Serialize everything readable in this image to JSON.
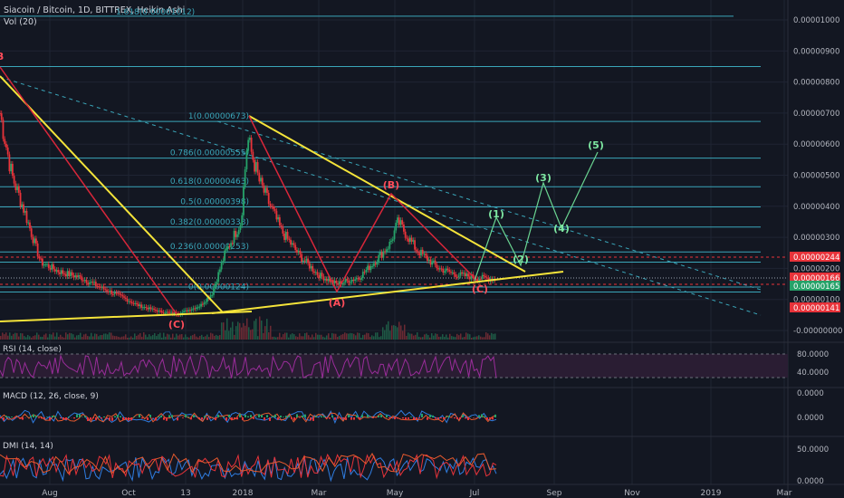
{
  "header": {
    "title": "Siacoin / Bitcoin, 1D, BITTREX, Heikin Ashi",
    "vol": "Vol (20)",
    "top_fib": "1.618(0.00001012)"
  },
  "price_axis": {
    "ticks": [
      "0.00001000",
      "0.00000900",
      "0.00000800",
      "0.00000700",
      "0.00000600",
      "0.00000500",
      "0.00000400",
      "0.00000300",
      "0.00000200",
      "0.00000100",
      "-0.00000000"
    ],
    "badges": [
      {
        "text": "0.00000244",
        "color": "#e8333a"
      },
      {
        "text": "0.00000166",
        "color": "#e8333a"
      },
      {
        "text": "0.00000165",
        "color": "#26a269"
      },
      {
        "text": "0.00000141",
        "color": "#e8333a"
      }
    ]
  },
  "fib_levels": [
    {
      "label": "1(0.00000673)",
      "value": 6.73e-06
    },
    {
      "label": "0.786(0.00000555)",
      "value": 5.55e-06
    },
    {
      "label": "0.618(0.00000463)",
      "value": 4.63e-06
    },
    {
      "label": "0.5(0.00000398)",
      "value": 3.98e-06
    },
    {
      "label": "0.382(0.00000333)",
      "value": 3.33e-06
    },
    {
      "label": "0.236(0.00000253)",
      "value": 2.53e-06
    },
    {
      "label": "0(0.00000124)",
      "value": 1.24e-06
    }
  ],
  "wave_labels": [
    {
      "text": "B",
      "color": "#ff4d5a"
    },
    {
      "text": "(C)",
      "color": "#ff4d5a"
    },
    {
      "text": "(A)",
      "color": "#ff4d5a"
    },
    {
      "text": "(B)",
      "color": "#ff4d5a"
    },
    {
      "text": "(C)",
      "color": "#ff4d5a"
    },
    {
      "text": "(1)",
      "color": "#7ee8a2"
    },
    {
      "text": "(2)",
      "color": "#7ee8a2"
    },
    {
      "text": "(3)",
      "color": "#7ee8a2"
    },
    {
      "text": "(4)",
      "color": "#7ee8a2"
    },
    {
      "text": "(5)",
      "color": "#7ee8a2"
    }
  ],
  "rsi": {
    "title": "RSI (14, close)",
    "ticks": [
      "80.0000",
      "40.0000"
    ]
  },
  "macd": {
    "title": "MACD (12, 26, close, 9)",
    "ticks": [
      "0.0000",
      "0.0000"
    ]
  },
  "dmi": {
    "title": "DMI (14, 14)",
    "ticks": [
      "50.0000",
      "0.0000"
    ]
  },
  "time_axis": [
    "Aug",
    "Oct",
    "13",
    "2018",
    "Mar",
    "May",
    "Jul",
    "Sep",
    "Nov",
    "2019",
    "Mar"
  ],
  "chart_data": {
    "type": "line",
    "title": "Siacoin / Bitcoin, 1D, BITTREX, Heikin Ashi",
    "ylim": [
      0,
      1.05e-05
    ],
    "series": [
      {
        "name": "Siacoin / Bitcoin",
        "x": [
          "2017-07-01",
          "2017-07-10",
          "2017-07-20",
          "2017-08-01",
          "2017-08-15",
          "2017-09-01",
          "2017-09-15",
          "2017-10-01",
          "2017-10-15",
          "2017-11-01",
          "2017-11-15",
          "2017-12-01",
          "2017-12-10",
          "2017-12-20",
          "2018-01-01",
          "2018-01-06",
          "2018-01-15",
          "2018-02-01",
          "2018-02-15",
          "2018-03-01",
          "2018-03-15",
          "2018-04-01",
          "2018-04-15",
          "2018-04-25",
          "2018-05-01",
          "2018-05-15",
          "2018-06-01",
          "2018-06-15",
          "2018-07-01",
          "2018-07-15"
        ],
        "values": [
          7e-06,
          5e-06,
          3.8e-06,
          2.2e-06,
          1.9e-06,
          1.7e-06,
          1.4e-06,
          1.1e-06,
          8e-07,
          6e-07,
          5.5e-07,
          8e-07,
          1.2e-06,
          2.5e-06,
          3.5e-06,
          6.2e-06,
          4.8e-06,
          3.2e-06,
          2.4e-06,
          1.8e-06,
          1.5e-06,
          1.7e-06,
          2.3e-06,
          2.8e-06,
          3.5e-06,
          2.6e-06,
          2e-06,
          1.8e-06,
          1.7e-06,
          1.66e-06
        ]
      }
    ]
  }
}
